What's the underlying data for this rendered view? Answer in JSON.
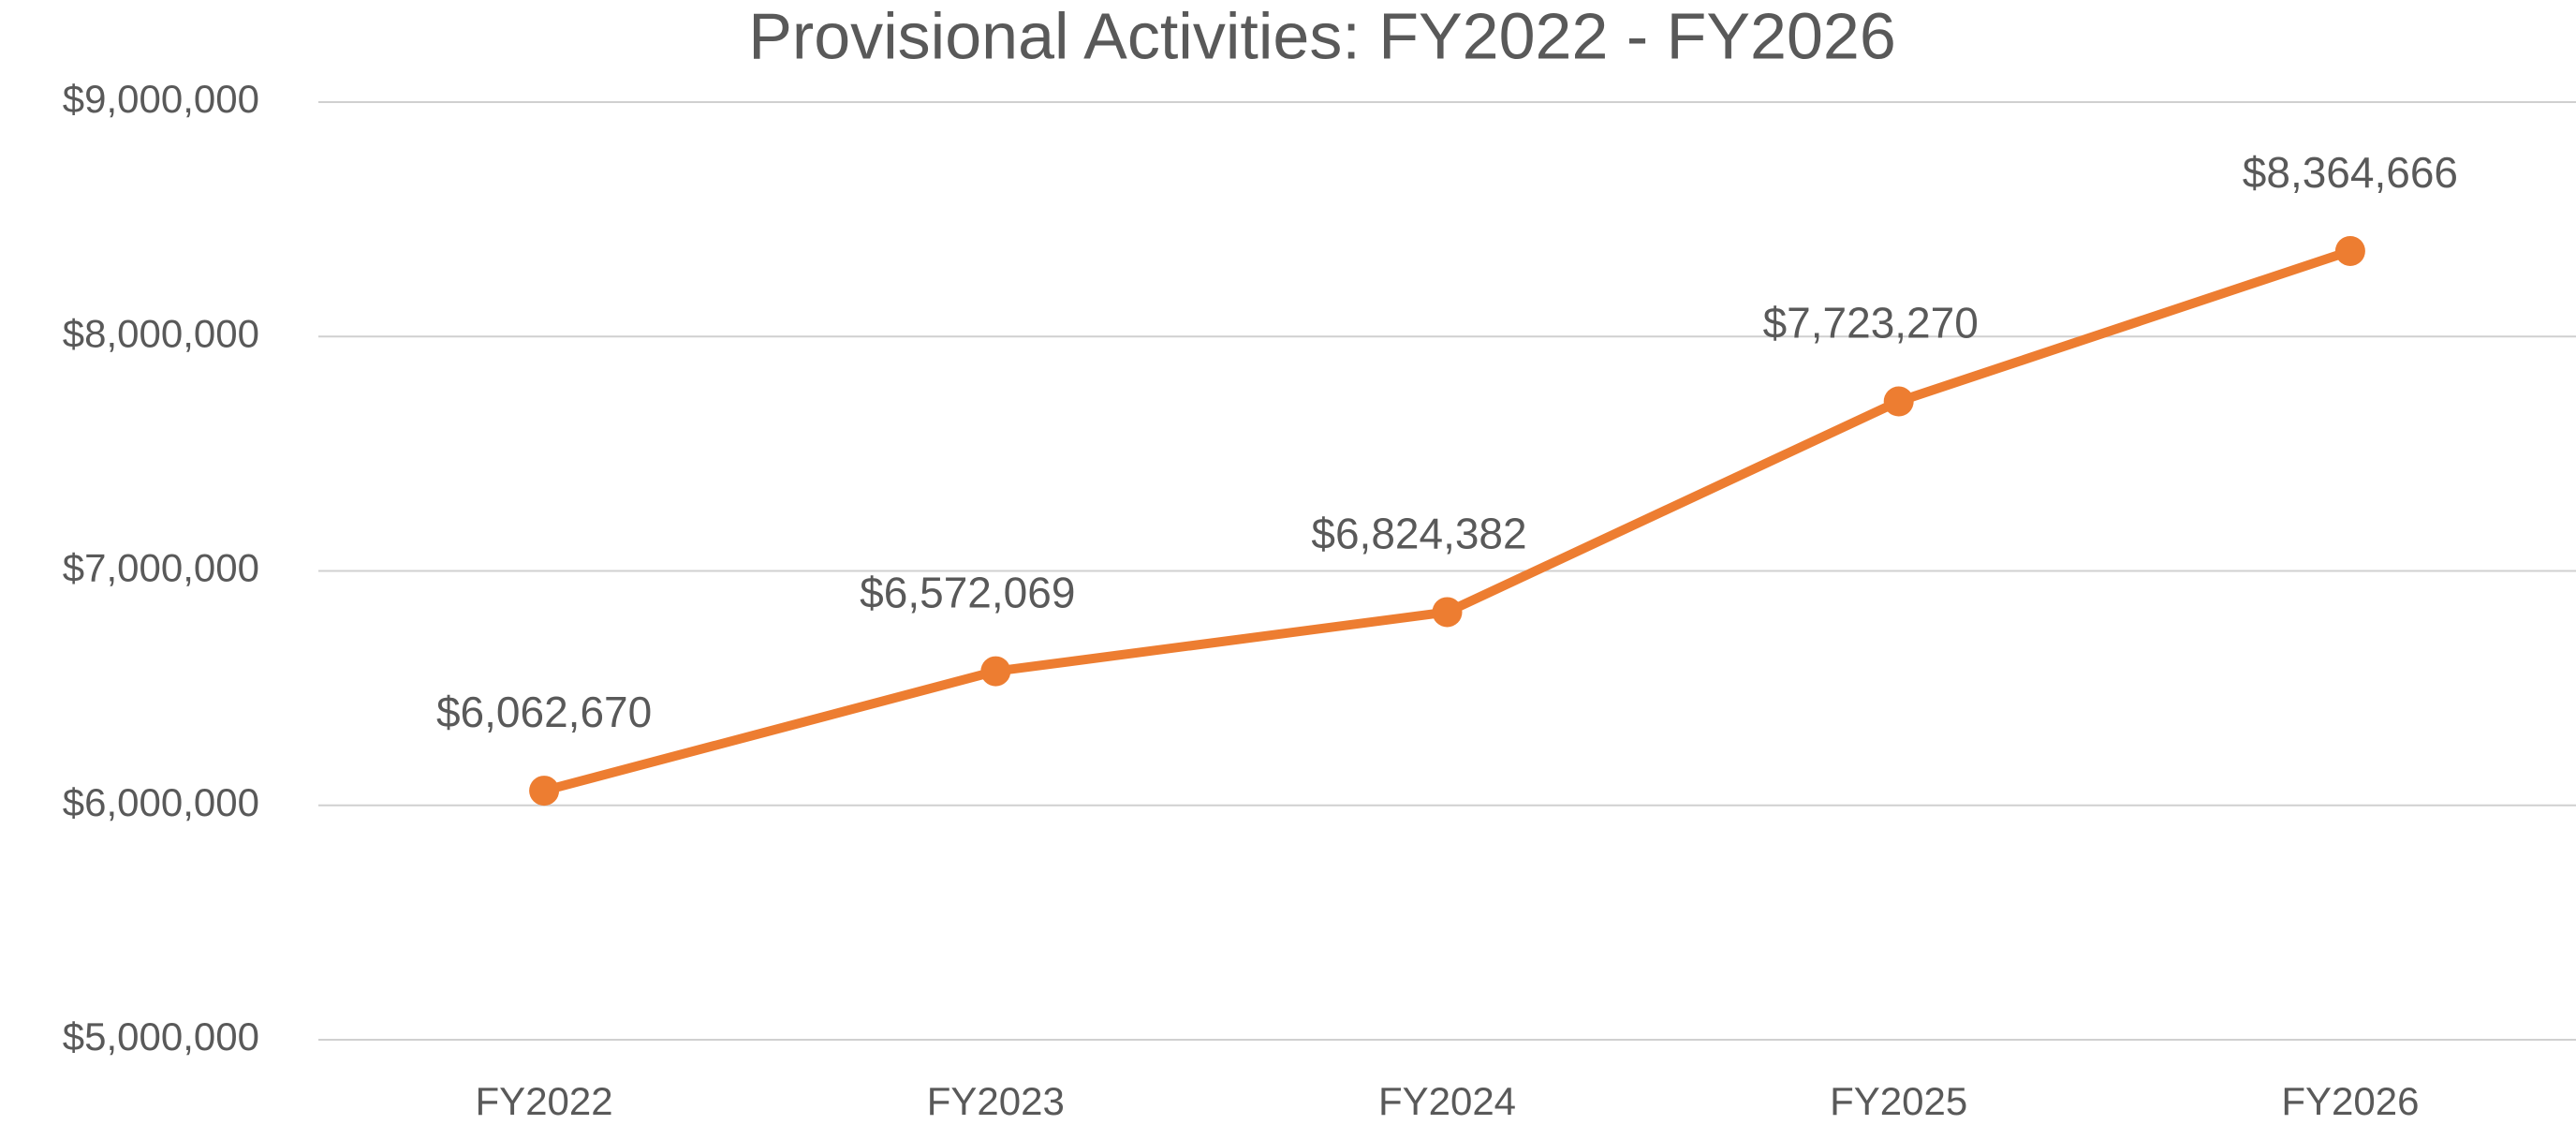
{
  "chart_data": {
    "type": "line",
    "title": "Provisional Activities: FY2022 - FY2026",
    "categories": [
      "FY2022",
      "FY2023",
      "FY2024",
      "FY2025",
      "FY2026"
    ],
    "series": [
      {
        "name": "Provisional Activities",
        "color": "#ED7D31",
        "values": [
          6062670,
          6572069,
          6824382,
          7723270,
          8364666
        ],
        "value_labels": [
          "$6,062,670",
          "$6,572,069",
          "$6,824,382",
          "$7,723,270",
          "$8,364,666"
        ]
      }
    ],
    "ylim": [
      5000000,
      9000000
    ],
    "yticks": [
      {
        "value": 5000000,
        "label": "$5,000,000"
      },
      {
        "value": 6000000,
        "label": "$6,000,000"
      },
      {
        "value": 7000000,
        "label": "$7,000,000"
      },
      {
        "value": 8000000,
        "label": "$8,000,000"
      },
      {
        "value": 9000000,
        "label": "$9,000,000"
      }
    ],
    "grid": true
  }
}
